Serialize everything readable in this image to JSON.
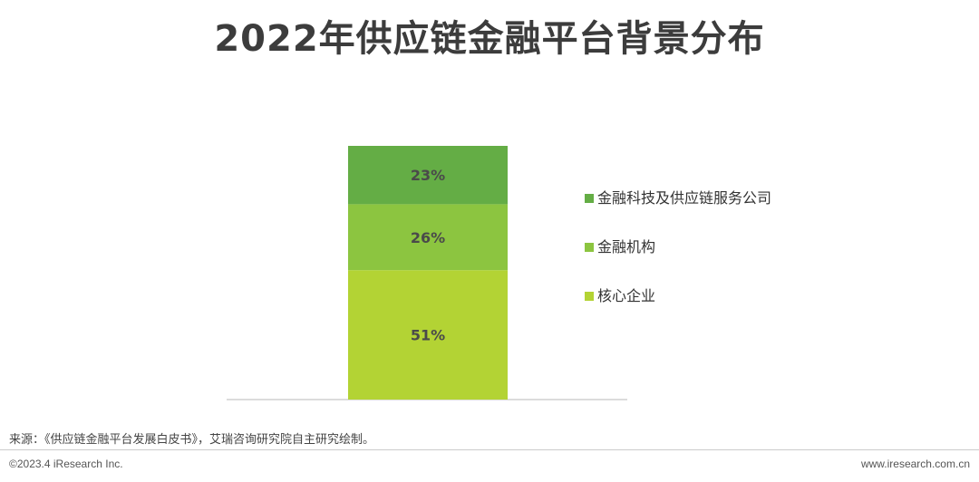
{
  "chart_data": {
    "type": "bar",
    "stacked": true,
    "title": "2022年供应链金融平台背景分布",
    "categories": [
      ""
    ],
    "series": [
      {
        "name": "核心企业",
        "values": [
          51
        ],
        "label": "51%",
        "color": "#b3d334"
      },
      {
        "name": "金融机构",
        "values": [
          26
        ],
        "label": "26%",
        "color": "#8cc540"
      },
      {
        "name": "金融科技及供应链服务公司",
        "values": [
          23
        ],
        "label": "23%",
        "color": "#64ad45"
      }
    ],
    "ylim": [
      0,
      100
    ],
    "grid": false,
    "legend_position": "right"
  },
  "footer": {
    "source": "来源：《供应链金融平台发展白皮书》，艾瑞咨询研究院自主研究绘制。",
    "copyright": "©2023.4 iResearch Inc.",
    "website": "www.iresearch.com.cn"
  }
}
